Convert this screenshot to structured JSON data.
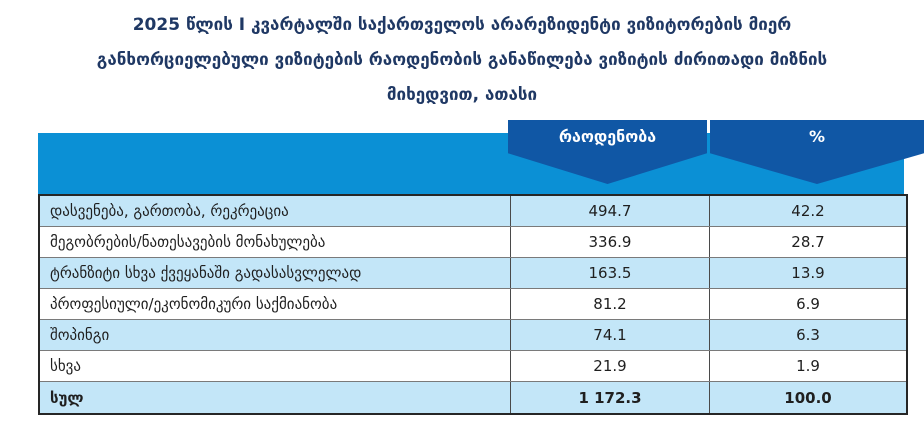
{
  "title": {
    "full": "2025 წლის I კვარტალში საქართველოს არარეზიდენტი ვიზიტორების მიერ განხორციელებული ვიზიტების რაოდენობის განაწილება ვიზიტის ძირითადი მიზნის მიხედვით, ათასი",
    "lines": [
      "2025 წლის I კვარტალში საქართველოს არარეზიდენტი ვიზიტორების მიერ",
      "განხორციელებული ვიზიტების რაოდენობის განაწილება ვიზიტის ძირითადი მიზნის",
      "მიხედვით, ათასი"
    ]
  },
  "table": {
    "columns": {
      "quantity": "რაოდენობა",
      "percent": "%"
    },
    "rows": [
      {
        "label": "დასვენება, გართობა, რეკრეაცია",
        "quantity": "494.7",
        "percent": "42.2"
      },
      {
        "label": "მეგობრების/ნათესავების მონახულება",
        "quantity": "336.9",
        "percent": "28.7"
      },
      {
        "label": "ტრანზიტი სხვა ქვეყანაში გადასასვლელად",
        "quantity": "163.5",
        "percent": "13.9"
      },
      {
        "label": "პროფესიული/ეკონომიკური საქმიანობა",
        "quantity": "81.2",
        "percent": "6.9"
      },
      {
        "label": "შოპინგი",
        "quantity": "74.1",
        "percent": "6.3"
      },
      {
        "label": "სხვა",
        "quantity": "21.9",
        "percent": "1.9"
      }
    ],
    "total": {
      "label": "სულ",
      "quantity": "1 172.3",
      "percent": "100.0"
    }
  },
  "chart_data": {
    "type": "table",
    "title": "2025 წლის I კვარტალში საქართველოს არარეზიდენტი ვიზიტორების მიერ განხორციელებული ვიზიტების რაოდენობის განაწილება ვიზიტის ძირითადი მიზნის მიხედვით, ათასი",
    "columns": [
      "",
      "რაოდენობა",
      "%"
    ],
    "categories": [
      "დასვენება, გართობა, რეკრეაცია",
      "მეგობრების/ნათესავების მონახულება",
      "ტრანზიტი სხვა ქვეყანაში გადასასვლელად",
      "პროფესიული/ეკონომიკური საქმიანობა",
      "შოპინგი",
      "სხვა"
    ],
    "series": [
      {
        "name": "რაოდენობა",
        "values": [
          494.7,
          336.9,
          163.5,
          81.2,
          74.1,
          21.9
        ]
      },
      {
        "name": "%",
        "values": [
          42.2,
          28.7,
          13.9,
          6.9,
          6.3,
          1.9
        ]
      }
    ],
    "total": {
      "label": "სულ",
      "quantity": 1172.3,
      "percent": 100.0
    }
  },
  "colors": {
    "title_text": "#1f3864",
    "header_band": "#0b90d5",
    "ribbon": "#1057a5",
    "row_shaded": "#c3e6f8",
    "row_white": "#ffffff",
    "border_dark": "#262626",
    "cell_text": "#1f1f1f"
  }
}
